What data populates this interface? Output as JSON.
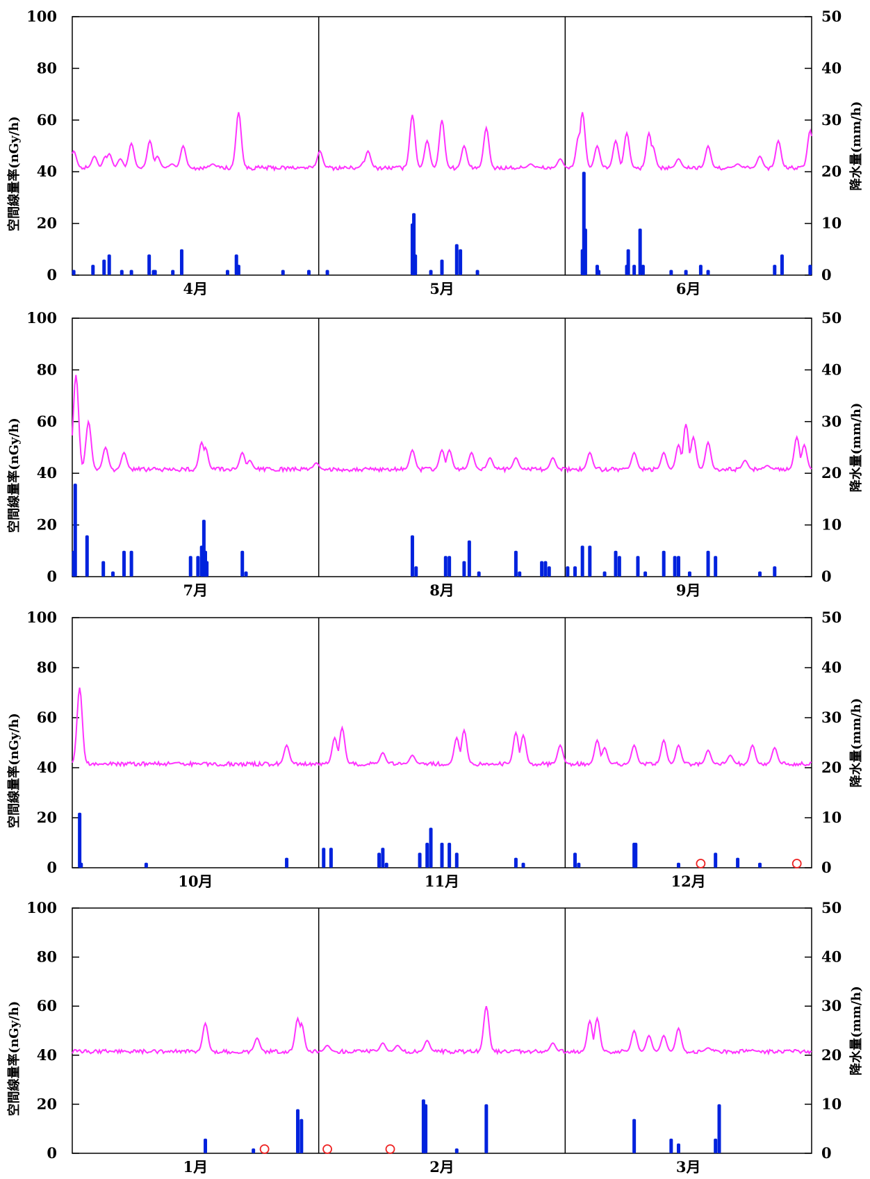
{
  "chart_data": {
    "type": "line",
    "left_ylabel": "空間線量率(nGy/h)",
    "right_ylabel": "降水量(mm/h)",
    "left_ylim": [
      0,
      100
    ],
    "left_ticks": [
      "0",
      "20",
      "40",
      "60",
      "80",
      "100"
    ],
    "right_ylim": [
      0,
      50
    ],
    "right_ticks": [
      "0",
      "10",
      "20",
      "30",
      "40",
      "50"
    ],
    "series_colors": {
      "dose_rate": "#ff33ff",
      "precipitation": "#0022dd",
      "snow_marker": "#ee2222"
    },
    "panels": [
      {
        "months": [
          "4月",
          "5月",
          "6月"
        ],
        "dose_rate": {
          "base": 41.5,
          "noise": 0.8,
          "peaks": [
            [
              0.002,
              48
            ],
            [
              0.03,
              46
            ],
            [
              0.045,
              46
            ],
            [
              0.05,
              47
            ],
            [
              0.065,
              45
            ],
            [
              0.08,
              51
            ],
            [
              0.105,
              52
            ],
            [
              0.115,
              46
            ],
            [
              0.135,
              43
            ],
            [
              0.15,
              50
            ],
            [
              0.19,
              43
            ],
            [
              0.225,
              63
            ],
            [
              0.3,
              41
            ],
            [
              0.335,
              48
            ],
            [
              0.395,
              44
            ],
            [
              0.4,
              48
            ],
            [
              0.46,
              62
            ],
            [
              0.48,
              52
            ],
            [
              0.5,
              60
            ],
            [
              0.53,
              50
            ],
            [
              0.56,
              57
            ],
            [
              0.62,
              43
            ],
            [
              0.66,
              45
            ],
            [
              0.685,
              54
            ],
            [
              0.69,
              63
            ],
            [
              0.71,
              50
            ],
            [
              0.735,
              52
            ],
            [
              0.75,
              55
            ],
            [
              0.78,
              55
            ],
            [
              0.785,
              50
            ],
            [
              0.82,
              45
            ],
            [
              0.86,
              50
            ],
            [
              0.9,
              43
            ],
            [
              0.93,
              46
            ],
            [
              0.955,
              52
            ],
            [
              0.998,
              56
            ]
          ]
        },
        "precipitation": [
          [
            0.002,
            1
          ],
          [
            0.028,
            2
          ],
          [
            0.043,
            3
          ],
          [
            0.05,
            4
          ],
          [
            0.067,
            1
          ],
          [
            0.08,
            1
          ],
          [
            0.104,
            4
          ],
          [
            0.11,
            1
          ],
          [
            0.112,
            1
          ],
          [
            0.136,
            1
          ],
          [
            0.148,
            5
          ],
          [
            0.21,
            1
          ],
          [
            0.222,
            4
          ],
          [
            0.225,
            2
          ],
          [
            0.285,
            1
          ],
          [
            0.32,
            1
          ],
          [
            0.345,
            1
          ],
          [
            0.46,
            10
          ],
          [
            0.462,
            12
          ],
          [
            0.464,
            4
          ],
          [
            0.485,
            1
          ],
          [
            0.5,
            3
          ],
          [
            0.52,
            6
          ],
          [
            0.525,
            5
          ],
          [
            0.548,
            1
          ],
          [
            0.69,
            5
          ],
          [
            0.692,
            20
          ],
          [
            0.694,
            9
          ],
          [
            0.71,
            2
          ],
          [
            0.712,
            1
          ],
          [
            0.75,
            2
          ],
          [
            0.752,
            5
          ],
          [
            0.76,
            2
          ],
          [
            0.768,
            9
          ],
          [
            0.772,
            2
          ],
          [
            0.81,
            1
          ],
          [
            0.83,
            1
          ],
          [
            0.85,
            2
          ],
          [
            0.86,
            1
          ],
          [
            0.95,
            2
          ],
          [
            0.96,
            4
          ],
          [
            0.998,
            2
          ]
        ],
        "snow_markers": []
      },
      {
        "months": [
          "7月",
          "8月",
          "9月"
        ],
        "dose_rate": {
          "base": 41.5,
          "noise": 0.8,
          "peaks": [
            [
              0.002,
              52
            ],
            [
              0.005,
              78
            ],
            [
              0.022,
              60
            ],
            [
              0.045,
              50
            ],
            [
              0.07,
              48
            ],
            [
              0.175,
              52
            ],
            [
              0.18,
              50
            ],
            [
              0.23,
              48
            ],
            [
              0.24,
              45
            ],
            [
              0.33,
              44
            ],
            [
              0.46,
              49
            ],
            [
              0.5,
              49
            ],
            [
              0.51,
              49
            ],
            [
              0.54,
              48
            ],
            [
              0.565,
              46
            ],
            [
              0.6,
              46
            ],
            [
              0.65,
              46
            ],
            [
              0.7,
              48
            ],
            [
              0.75,
              42
            ],
            [
              0.76,
              48
            ],
            [
              0.8,
              48
            ],
            [
              0.82,
              51
            ],
            [
              0.83,
              59
            ],
            [
              0.84,
              54
            ],
            [
              0.86,
              52
            ],
            [
              0.91,
              45
            ],
            [
              0.94,
              43
            ],
            [
              0.98,
              54
            ],
            [
              0.99,
              51
            ]
          ],
          "vis": 1
        },
        "precipitation": [
          [
            0.002,
            5
          ],
          [
            0.004,
            18
          ],
          [
            0.02,
            8
          ],
          [
            0.042,
            3
          ],
          [
            0.055,
            1
          ],
          [
            0.07,
            5
          ],
          [
            0.08,
            5
          ],
          [
            0.16,
            4
          ],
          [
            0.17,
            4
          ],
          [
            0.175,
            6
          ],
          [
            0.178,
            11
          ],
          [
            0.18,
            5
          ],
          [
            0.182,
            3
          ],
          [
            0.23,
            5
          ],
          [
            0.235,
            1
          ],
          [
            0.46,
            8
          ],
          [
            0.465,
            2
          ],
          [
            0.505,
            4
          ],
          [
            0.51,
            4
          ],
          [
            0.53,
            3
          ],
          [
            0.537,
            7
          ],
          [
            0.55,
            1
          ],
          [
            0.6,
            5
          ],
          [
            0.605,
            1
          ],
          [
            0.635,
            3
          ],
          [
            0.64,
            3
          ],
          [
            0.645,
            2
          ],
          [
            0.67,
            2
          ],
          [
            0.68,
            2
          ],
          [
            0.69,
            6
          ],
          [
            0.7,
            6
          ],
          [
            0.72,
            1
          ],
          [
            0.735,
            5
          ],
          [
            0.74,
            4
          ],
          [
            0.765,
            4
          ],
          [
            0.775,
            1
          ],
          [
            0.8,
            5
          ],
          [
            0.815,
            4
          ],
          [
            0.82,
            4
          ],
          [
            0.835,
            1
          ],
          [
            0.86,
            5
          ],
          [
            0.87,
            4
          ],
          [
            0.93,
            1
          ],
          [
            0.95,
            2
          ]
        ],
        "snow_markers": []
      },
      {
        "months": [
          "10月",
          "11月",
          "12月"
        ],
        "dose_rate": {
          "base": 41.5,
          "noise": 0.8,
          "peaks": [
            [
              0.01,
              72
            ],
            [
              0.14,
              42
            ],
            [
              0.29,
              49
            ],
            [
              0.355,
              52
            ],
            [
              0.365,
              56
            ],
            [
              0.42,
              46
            ],
            [
              0.46,
              45
            ],
            [
              0.52,
              52
            ],
            [
              0.53,
              55
            ],
            [
              0.6,
              54
            ],
            [
              0.61,
              53
            ],
            [
              0.66,
              49
            ],
            [
              0.71,
              51
            ],
            [
              0.72,
              48
            ],
            [
              0.76,
              49
            ],
            [
              0.8,
              51
            ],
            [
              0.82,
              49
            ],
            [
              0.86,
              47
            ],
            [
              0.89,
              45
            ],
            [
              0.92,
              49
            ],
            [
              0.95,
              48
            ]
          ],
          "vis": 1
        },
        "precipitation": [
          [
            0.01,
            11
          ],
          [
            0.012,
            1
          ],
          [
            0.1,
            1
          ],
          [
            0.29,
            2
          ],
          [
            0.34,
            4
          ],
          [
            0.35,
            4
          ],
          [
            0.415,
            3
          ],
          [
            0.42,
            4
          ],
          [
            0.425,
            1
          ],
          [
            0.47,
            3
          ],
          [
            0.48,
            5
          ],
          [
            0.485,
            8
          ],
          [
            0.5,
            5
          ],
          [
            0.51,
            5
          ],
          [
            0.52,
            3
          ],
          [
            0.6,
            2
          ],
          [
            0.61,
            1
          ],
          [
            0.68,
            3
          ],
          [
            0.685,
            1
          ],
          [
            0.76,
            5
          ],
          [
            0.762,
            5
          ],
          [
            0.82,
            1
          ],
          [
            0.87,
            3
          ],
          [
            0.9,
            2
          ],
          [
            0.93,
            1
          ]
        ],
        "snow_markers": [
          0.85,
          0.98
        ]
      },
      {
        "months": [
          "1月",
          "2月",
          "3月"
        ],
        "dose_rate": {
          "base": 41.5,
          "noise": 0.8,
          "peaks": [
            [
              0.18,
              53
            ],
            [
              0.25,
              47
            ],
            [
              0.305,
              55
            ],
            [
              0.31,
              53
            ],
            [
              0.345,
              44
            ],
            [
              0.42,
              45
            ],
            [
              0.44,
              44
            ],
            [
              0.48,
              46
            ],
            [
              0.56,
              60
            ],
            [
              0.65,
              45
            ],
            [
              0.7,
              54
            ],
            [
              0.71,
              55
            ],
            [
              0.76,
              50
            ],
            [
              0.78,
              48
            ],
            [
              0.8,
              48
            ],
            [
              0.82,
              51
            ],
            [
              0.86,
              43
            ],
            [
              0.92,
              42
            ]
          ],
          "vis": 1
        },
        "precipitation": [
          [
            0.18,
            3
          ],
          [
            0.245,
            1
          ],
          [
            0.305,
            9
          ],
          [
            0.31,
            7
          ],
          [
            0.475,
            11
          ],
          [
            0.478,
            10
          ],
          [
            0.52,
            1
          ],
          [
            0.56,
            10
          ],
          [
            0.76,
            7
          ],
          [
            0.81,
            3
          ],
          [
            0.82,
            2
          ],
          [
            0.87,
            3
          ],
          [
            0.875,
            10
          ]
        ],
        "snow_markers": [
          0.26,
          0.345,
          0.43
        ]
      }
    ]
  }
}
